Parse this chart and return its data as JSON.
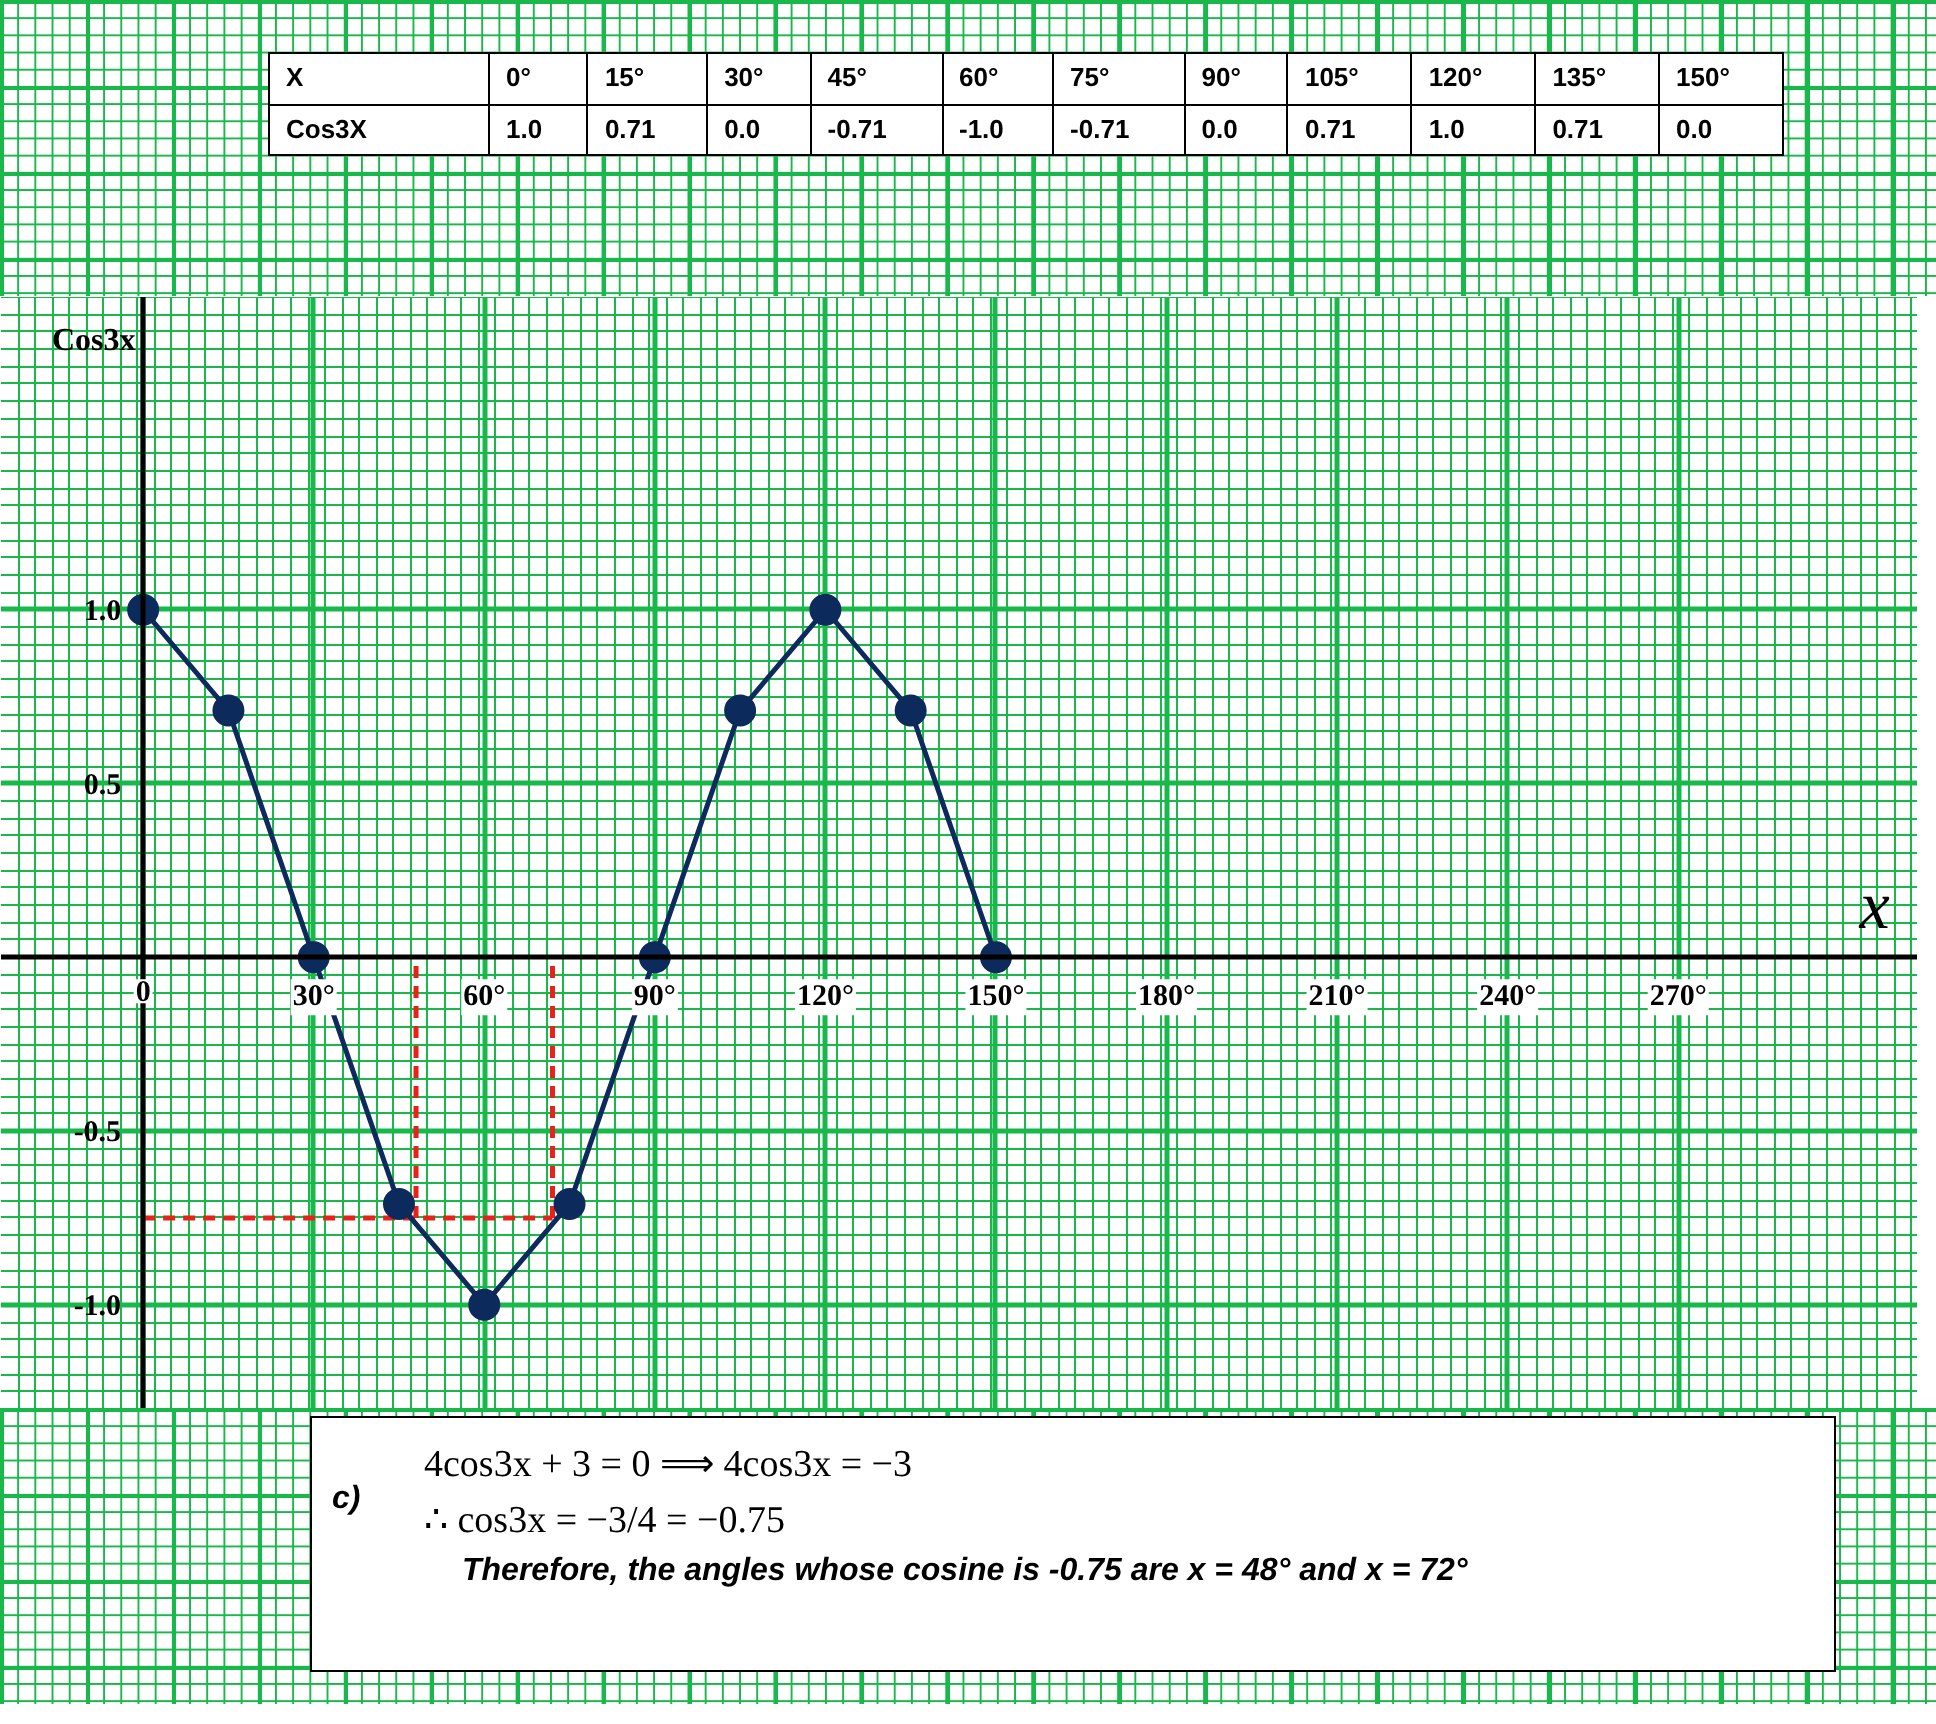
{
  "chart_data": {
    "type": "line",
    "xlabel": "x",
    "ylabel": "Cos3x",
    "x": [
      0,
      15,
      30,
      45,
      60,
      75,
      90,
      105,
      120,
      135,
      150
    ],
    "series": [
      {
        "color": "#0d2a5c",
        "values": [
          1.0,
          0.71,
          0.0,
          -0.71,
          -1.0,
          -0.71,
          0.0,
          0.71,
          1.0,
          0.71,
          0.0
        ]
      }
    ],
    "marker": "circle",
    "line_style": "solid",
    "grid": true,
    "xlim": [
      -25,
      312
    ],
    "ylim": [
      -1.3,
      1.9
    ],
    "xticks": [
      {
        "value": 0,
        "label": "0"
      },
      {
        "value": 30,
        "label": "30°"
      },
      {
        "value": 60,
        "label": "60°"
      },
      {
        "value": 90,
        "label": "90°"
      },
      {
        "value": 120,
        "label": "120°"
      },
      {
        "value": 150,
        "label": "150°"
      },
      {
        "value": 180,
        "label": "180°"
      },
      {
        "value": 210,
        "label": "210°"
      },
      {
        "value": 240,
        "label": "240°"
      },
      {
        "value": 270,
        "label": "270°"
      }
    ],
    "yticks": [
      {
        "value": 1.0,
        "label": "1.0"
      },
      {
        "value": 0.5,
        "label": "0.5"
      },
      {
        "value": -0.5,
        "label": "-0.5"
      },
      {
        "value": -1.0,
        "label": "-1.0"
      }
    ],
    "ref_lines": [
      {
        "axis": "y",
        "value": -0.75,
        "color": "#e8221b",
        "line_style": "dashed"
      },
      {
        "axis": "x",
        "value": 48,
        "color": "#e8221b",
        "line_style": "dashed"
      },
      {
        "axis": "x",
        "value": 72,
        "color": "#e8221b",
        "line_style": "dashed"
      }
    ],
    "annotations": [
      "X",
      "0°",
      "15°",
      "30°",
      "45°",
      "60°",
      "75°",
      "90°",
      "105°",
      "120°",
      "135°",
      "150°",
      "Cos3X",
      "1.0",
      "0.71",
      "0.0",
      "-0.71",
      "-1.0",
      "-0.71",
      "0.0",
      "0.71",
      "1.0",
      "0.71",
      "0.0",
      "c)",
      "4cos3x + 3 = 0   ⟹ 4cos3x = −3",
      "∴ cos3x = −3/4 = −0.75",
      "Therefore, the angles whose cosine is -0.75 are x = 48° and x = 72°"
    ]
  }
}
